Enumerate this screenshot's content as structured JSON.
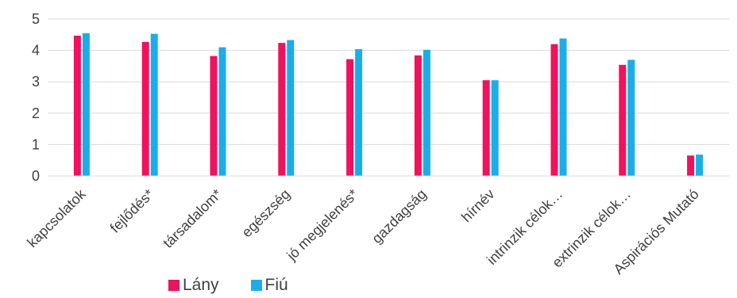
{
  "chart_data": {
    "type": "bar",
    "title": "",
    "xlabel": "",
    "ylabel": "",
    "ylim": [
      0,
      5
    ],
    "yticks": [
      0,
      1,
      2,
      3,
      4,
      5
    ],
    "grid": true,
    "legend_position": "bottom-left",
    "categories": [
      "kapcsolatok",
      "fejlődés*",
      "társadalom*",
      "egészség",
      "jó megjelenés*",
      "gazdagság",
      "hírnév",
      "intrinzik célok…",
      "extrinzik célok…",
      "Aspirációs Mutató"
    ],
    "series": [
      {
        "name": "Lány",
        "color": "#F0115F",
        "values": [
          4.47,
          4.27,
          3.82,
          4.24,
          3.72,
          3.84,
          3.05,
          4.2,
          3.54,
          0.65
        ]
      },
      {
        "name": "Fiú",
        "color": "#1AAEE8",
        "values": [
          4.55,
          4.53,
          4.1,
          4.33,
          4.04,
          4.02,
          3.05,
          4.38,
          3.7,
          0.68
        ]
      }
    ]
  }
}
